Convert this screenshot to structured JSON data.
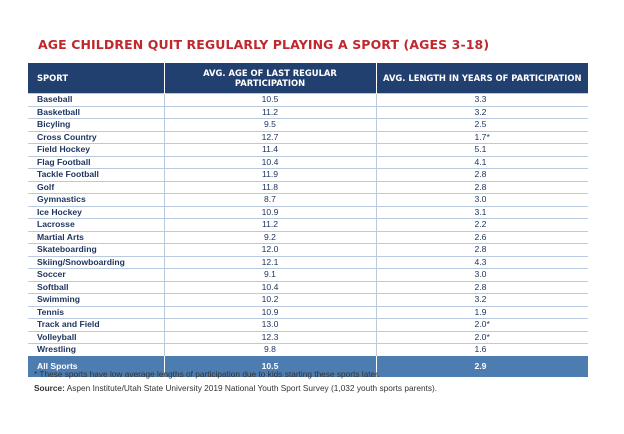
{
  "title": "AGE CHILDREN QUIT REGULARLY PLAYING A SPORT (AGES 3-18)",
  "columns": {
    "sport": "SPORT",
    "age": "AVG. AGE OF LAST REGULAR PARTICIPATION",
    "length": "AVG. LENGTH IN YEARS OF PARTICIPATION"
  },
  "rows": [
    {
      "sport": "Baseball",
      "age": "10.5",
      "length": "3.3"
    },
    {
      "sport": "Basketball",
      "age": "11.2",
      "length": "3.2"
    },
    {
      "sport": "Bicyling",
      "age": "9.5",
      "length": "2.5"
    },
    {
      "sport": "Cross Country",
      "age": "12.7",
      "length": "1.7*"
    },
    {
      "sport": "Field Hockey",
      "age": "11.4",
      "length": "5.1"
    },
    {
      "sport": "Flag Football",
      "age": "10.4",
      "length": "4.1"
    },
    {
      "sport": "Tackle Football",
      "age": "11.9",
      "length": "2.8"
    },
    {
      "sport": "Golf",
      "age": "11.8",
      "length": "2.8"
    },
    {
      "sport": "Gymnastics",
      "age": "8.7",
      "length": "3.0"
    },
    {
      "sport": "Ice Hockey",
      "age": "10.9",
      "length": "3.1"
    },
    {
      "sport": "Lacrosse",
      "age": "11.2",
      "length": "2.2"
    },
    {
      "sport": "Martial Arts",
      "age": "9.2",
      "length": "2.6"
    },
    {
      "sport": "Skateboarding",
      "age": "12.0",
      "length": "2.8"
    },
    {
      "sport": "Skiing/Snowboarding",
      "age": "12.1",
      "length": "4.3"
    },
    {
      "sport": "Soccer",
      "age": "9.1",
      "length": "3.0"
    },
    {
      "sport": "Softball",
      "age": "10.4",
      "length": "2.8"
    },
    {
      "sport": "Swimming",
      "age": "10.2",
      "length": "3.2"
    },
    {
      "sport": "Tennis",
      "age": "10.9",
      "length": "1.9"
    },
    {
      "sport": "Track and Field",
      "age": "13.0",
      "length": "2.0*"
    },
    {
      "sport": "Volleyball",
      "age": "12.3",
      "length": "2.0*"
    },
    {
      "sport": "Wrestling",
      "age": "9.8",
      "length": "1.6"
    }
  ],
  "total": {
    "sport": "All Sports",
    "age": "10.5",
    "length": "2.9"
  },
  "footnote": "* These sports have low average lengths of participation due to kids starting these sports later.",
  "source": {
    "label": "Source:",
    "text": " Aspen Institute/Utah State University 2019 National Youth Sport Survey (1,032 youth sports parents)."
  },
  "colors": {
    "title": "#c0282d",
    "header_bg": "#22406f",
    "total_bg": "#4d7db0",
    "body_text": "#1f3560",
    "row_rule": "#b9c9de"
  }
}
